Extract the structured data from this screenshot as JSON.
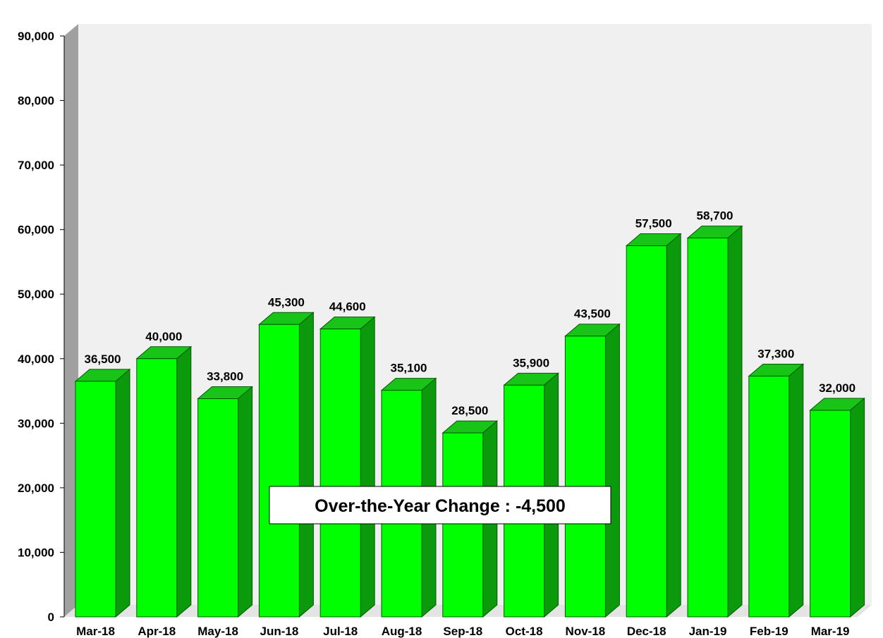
{
  "chart_data": {
    "type": "bar",
    "categories": [
      "Mar-18",
      "Apr-18",
      "May-18",
      "Jun-18",
      "Jul-18",
      "Aug-18",
      "Sep-18",
      "Oct-18",
      "Nov-18",
      "Dec-18",
      "Jan-19",
      "Feb-19",
      "Mar-19"
    ],
    "values": [
      36500,
      40000,
      33800,
      45300,
      44600,
      35100,
      28500,
      35900,
      43500,
      57500,
      58700,
      37300,
      32000
    ],
    "data_labels": [
      "36,500",
      "40,000",
      "33,800",
      "45,300",
      "44,600",
      "35,100",
      "28,500",
      "35,900",
      "43,500",
      "57,500",
      "58,700",
      "37,300",
      "32,000"
    ],
    "title": "",
    "xlabel": "",
    "ylabel": "",
    "ylim": [
      0,
      90000
    ],
    "yticks": [
      0,
      10000,
      20000,
      30000,
      40000,
      50000,
      60000,
      70000,
      80000,
      90000
    ],
    "ytick_labels": [
      "0",
      "10,000",
      "20,000",
      "30,000",
      "40,000",
      "50,000",
      "60,000",
      "70,000",
      "80,000",
      "90,000"
    ],
    "grid": false,
    "legend": "none",
    "style": "3d",
    "annotation": "Over-the-Year Change : -4,500",
    "colors": {
      "bar_front": "#00ff00",
      "bar_top": "#19c419",
      "bar_side": "#0b9a0b",
      "bar_edge": "#005a00",
      "plot_wall": "#f0f0f0",
      "left_wall": "#a0a0a0"
    }
  }
}
